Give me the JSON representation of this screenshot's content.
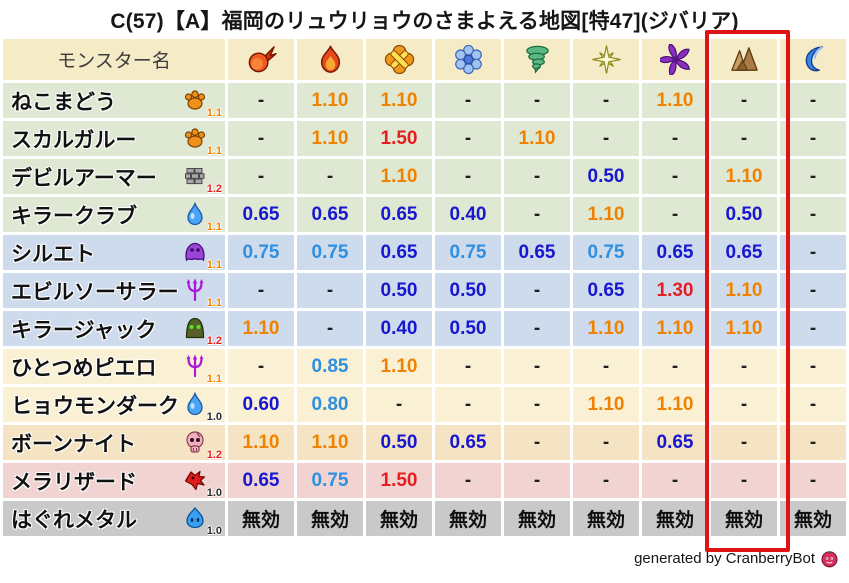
{
  "title": "C(57)【A】福岡のリュウリョウのさまよえる地図[特47](ジバリア)",
  "footer": {
    "credit": "generated by CranberryBot",
    "icon": "cranberry-icon"
  },
  "chart_data": {
    "type": "table",
    "title": "C(57)【A】福岡のリュウリョウのさまよえる地図[特47](ジバリア)",
    "name_header": "モンスター名",
    "element_columns": [
      {
        "icon": "fireball-icon"
      },
      {
        "icon": "flame-icon"
      },
      {
        "icon": "burst-icon"
      },
      {
        "icon": "snowflake-icon"
      },
      {
        "icon": "tornado-icon"
      },
      {
        "icon": "sparkle-icon"
      },
      {
        "icon": "pinwheel-icon"
      },
      {
        "icon": "rock-icon",
        "highlighted": true
      },
      {
        "icon": "wave-icon"
      }
    ],
    "highlighted_column_index": 7,
    "rows": [
      {
        "name": "ねこまどう",
        "icon": "paw-icon",
        "level": "1.1",
        "level_color": "orange",
        "group": "green",
        "values": [
          "-",
          "1.10",
          "1.10",
          "-",
          "-",
          "-",
          "1.10",
          "-",
          "-"
        ]
      },
      {
        "name": "スカルガルー",
        "icon": "paw-icon",
        "level": "1.1",
        "level_color": "orange",
        "group": "green",
        "values": [
          "-",
          "1.10",
          "1.50",
          "-",
          "1.10",
          "-",
          "-",
          "-",
          "-"
        ]
      },
      {
        "name": "デビルアーマー",
        "icon": "brick-icon",
        "level": "1.2",
        "level_color": "red",
        "group": "green",
        "values": [
          "-",
          "-",
          "1.10",
          "-",
          "-",
          "0.50",
          "-",
          "1.10",
          "-"
        ]
      },
      {
        "name": "キラークラブ",
        "icon": "droplet-icon",
        "level": "1.1",
        "level_color": "orange",
        "group": "green",
        "values": [
          "0.65",
          "0.65",
          "0.65",
          "0.40",
          "-",
          "1.10",
          "-",
          "0.50",
          "-"
        ]
      },
      {
        "name": "シルエト",
        "icon": "ghost-icon",
        "level": "1.1",
        "level_color": "orange",
        "group": "blue",
        "values": [
          "0.75",
          "0.75",
          "0.65",
          "0.75",
          "0.65",
          "0.75",
          "0.65",
          "0.65",
          "-"
        ]
      },
      {
        "name": "エビルソーサラー",
        "icon": "trident-icon",
        "level": "1.1",
        "level_color": "orange",
        "group": "blue",
        "values": [
          "-",
          "-",
          "0.50",
          "0.50",
          "-",
          "0.65",
          "1.30",
          "1.10",
          "-"
        ]
      },
      {
        "name": "キラージャック",
        "icon": "blob-icon",
        "level": "1.2",
        "level_color": "red",
        "group": "blue",
        "values": [
          "1.10",
          "-",
          "0.40",
          "0.50",
          "-",
          "1.10",
          "1.10",
          "1.10",
          "-"
        ]
      },
      {
        "name": "ひとつめピエロ",
        "icon": "trident-icon",
        "level": "1.1",
        "level_color": "orange",
        "group": "cream",
        "values": [
          "-",
          "0.85",
          "1.10",
          "-",
          "-",
          "-",
          "-",
          "-",
          "-"
        ]
      },
      {
        "name": "ヒョウモンダーク",
        "icon": "droplet-icon",
        "level": "1.0",
        "level_color": "dark",
        "group": "cream",
        "values": [
          "0.60",
          "0.80",
          "-",
          "-",
          "-",
          "1.10",
          "1.10",
          "-",
          "-"
        ]
      },
      {
        "name": "ボーンナイト",
        "icon": "skull-icon",
        "level": "1.2",
        "level_color": "red",
        "group": "tan",
        "values": [
          "1.10",
          "1.10",
          "0.50",
          "0.65",
          "-",
          "-",
          "0.65",
          "-",
          "-"
        ]
      },
      {
        "name": "メラリザード",
        "icon": "dragon-icon",
        "level": "1.0",
        "level_color": "dark",
        "group": "pink",
        "values": [
          "0.65",
          "0.75",
          "1.50",
          "-",
          "-",
          "-",
          "-",
          "-",
          "-"
        ]
      },
      {
        "name": "はぐれメタル",
        "icon": "slime-icon",
        "level": "1.0",
        "level_color": "dark",
        "group": "gray",
        "values": [
          "無効",
          "無効",
          "無効",
          "無効",
          "無効",
          "無効",
          "無効",
          "無効",
          "無効"
        ]
      }
    ],
    "nullify_label": "無効",
    "dash_label": "-"
  },
  "colors": {
    "header_bg": "#f6ebc7",
    "row_green": "#dfe8d2",
    "row_blue": "#cedbed",
    "row_cream": "#faf0d4",
    "row_tan": "#f5e4c4",
    "row_pink": "#f1d3d1",
    "row_gray": "#c9c9c9",
    "weak_orange": "#f08200",
    "very_weak_red": "#e51f1f",
    "resist_light_blue": "#2f8fe0",
    "resist_dark_blue": "#1717d0",
    "neutral_dark": "#1e1e1e",
    "badge_orange": "#f08200",
    "badge_red": "#e51f1f",
    "badge_dark": "#2a2a2a",
    "highlight_box": "#de1414"
  }
}
